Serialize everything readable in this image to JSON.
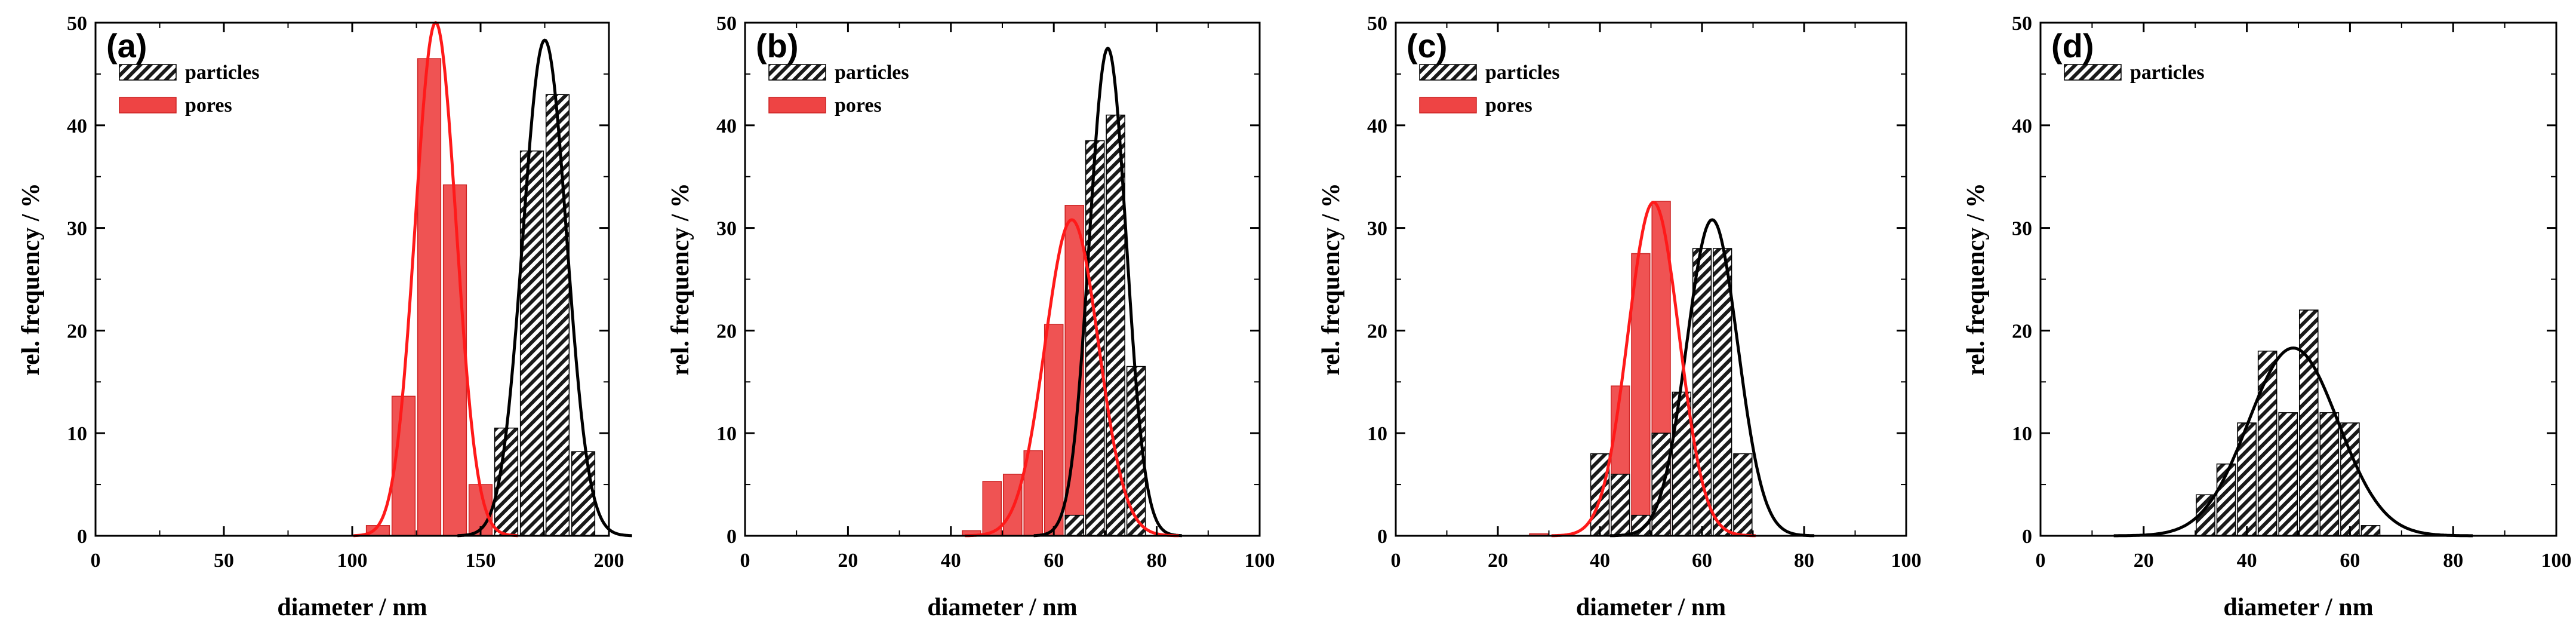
{
  "colors": {
    "particles": "#1a1a1a",
    "pores": "#ee4444",
    "pores_fit": "#ff1a1a",
    "particles_fit": "#000000",
    "axis": "#000000"
  },
  "chart_data": [
    {
      "type": "bar",
      "panel_label": "(a)",
      "xlabel": "diameter / nm",
      "ylabel": "rel. frequency / %",
      "xlim": [
        0,
        200
      ],
      "ylim": [
        0,
        50
      ],
      "xticks": [
        "0",
        "50",
        "100",
        "150",
        "200"
      ],
      "yticks": [
        "0",
        "10",
        "20",
        "30",
        "40",
        "50"
      ],
      "legend": [
        "particles",
        "pores"
      ],
      "bin_width": 10,
      "series": [
        {
          "name": "particles",
          "x": [
            160,
            170,
            180,
            190
          ],
          "values": [
            10.5,
            37.5,
            43,
            8.2
          ],
          "fit": {
            "mean": 175,
            "sigma": 8.5,
            "amp": 48.3
          }
        },
        {
          "name": "pores",
          "x": [
            110,
            120,
            130,
            140,
            150
          ],
          "values": [
            1,
            13.6,
            46.5,
            34.2,
            5
          ],
          "fit": {
            "mean": 132.5,
            "sigma": 8,
            "amp": 50
          }
        }
      ]
    },
    {
      "type": "bar",
      "panel_label": "(b)",
      "xlabel": "diameter / nm",
      "ylabel": "rel. frequency / %",
      "xlim": [
        0,
        100
      ],
      "ylim": [
        0,
        50
      ],
      "xticks": [
        "0",
        "20",
        "40",
        "60",
        "80",
        "100"
      ],
      "yticks": [
        "0",
        "10",
        "20",
        "30",
        "40",
        "50"
      ],
      "legend": [
        "particles",
        "pores"
      ],
      "bin_width": 4,
      "series": [
        {
          "name": "particles",
          "x": [
            64,
            68,
            72,
            76
          ],
          "values": [
            2,
            38.5,
            41,
            16.5
          ],
          "fit": {
            "mean": 70.5,
            "sigma": 3.6,
            "amp": 47.5
          }
        },
        {
          "name": "pores",
          "x": [
            44,
            48,
            52,
            56,
            60,
            64,
            68
          ],
          "values": [
            0.5,
            5.3,
            6,
            8.3,
            20.6,
            32.2,
            21.3
          ],
          "fit": {
            "mean": 63.5,
            "sigma": 5.2,
            "amp": 30.8
          }
        }
      ]
    },
    {
      "type": "bar",
      "panel_label": "(c)",
      "xlabel": "diameter / nm",
      "ylabel": "rel. frequency / %",
      "xlim": [
        0,
        100
      ],
      "ylim": [
        0,
        50
      ],
      "xticks": [
        "0",
        "20",
        "40",
        "60",
        "80",
        "100"
      ],
      "yticks": [
        "0",
        "10",
        "20",
        "30",
        "40",
        "50"
      ],
      "legend": [
        "particles",
        "pores"
      ],
      "bin_width": 4,
      "series": [
        {
          "name": "particles",
          "x": [
            40,
            44,
            48,
            52,
            56,
            60,
            64,
            68
          ],
          "values": [
            8,
            6,
            2,
            10,
            14,
            28,
            28,
            8
          ],
          "fit": {
            "mean": 62,
            "sigma": 5,
            "amp": 30.8
          }
        },
        {
          "name": "pores",
          "x": [
            28,
            40,
            44,
            48,
            52,
            56
          ],
          "values": [
            0.2,
            5,
            14.6,
            27.5,
            32.6,
            13
          ],
          "fit": {
            "mean": 50.5,
            "sigma": 5,
            "amp": 32.5
          }
        }
      ]
    },
    {
      "type": "bar",
      "panel_label": "(d)",
      "xlabel": "diameter / nm",
      "ylabel": "rel. frequency / %",
      "xlim": [
        0,
        100
      ],
      "ylim": [
        0,
        50
      ],
      "xticks": [
        "0",
        "20",
        "40",
        "60",
        "80",
        "100"
      ],
      "yticks": [
        "0",
        "10",
        "20",
        "30",
        "40",
        "50"
      ],
      "legend": [
        "particles"
      ],
      "bin_width": 4,
      "series": [
        {
          "name": "particles",
          "x": [
            32,
            36,
            40,
            44,
            48,
            52,
            56,
            60,
            64
          ],
          "values": [
            4,
            7,
            11,
            18,
            12,
            22,
            12,
            11,
            1
          ],
          "fit": {
            "mean": 49,
            "sigma": 8.7,
            "amp": 18.3
          }
        }
      ]
    }
  ]
}
